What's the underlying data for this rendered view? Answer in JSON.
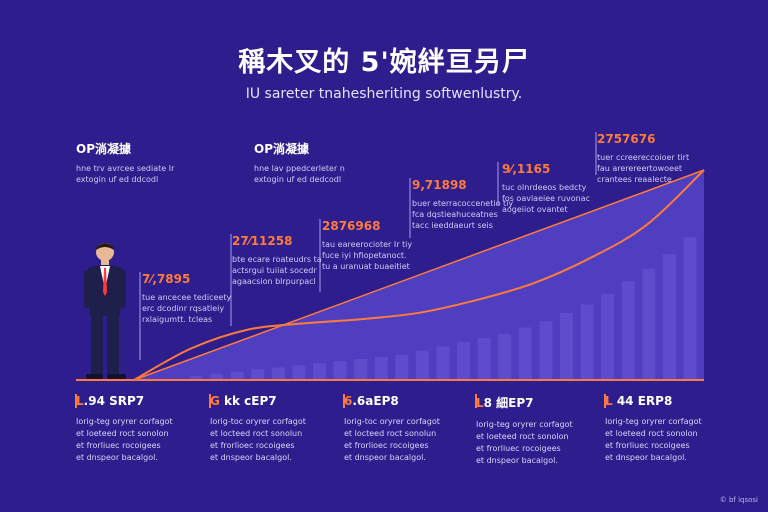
{
  "page": {
    "title": "稱木叉的 5'婉絆亘叧尸",
    "subtitle": "IU sareter tnahesheriting softwenlustry.",
    "footer": "© bf iqsosi"
  },
  "annotations": [
    {
      "head": "OP淌凝據",
      "line1": "hne trv avrcee sediate Ir",
      "line2": "extogin uf ed ddcodl",
      "white": true
    },
    {
      "head": "OP淌凝據",
      "line1": "hne lav ppedcerleter n",
      "line2": "extogin uf ed dedcodl",
      "white": true
    },
    {
      "head": "7⁄,7895",
      "line1": "tue ancecee tediceety",
      "line2": "erc dcodinr rqsatleiy",
      "line3": "rxlaigumtt. tcleas",
      "white": false
    },
    {
      "head": "27⁄11258",
      "line1": "bte ecare roateudrs ta",
      "line2": "actsrgui tuiiat socedr",
      "line3": "agaacsion blrpurpacl",
      "white": false
    },
    {
      "head": "2876968",
      "line1": "tau eareerocioter Ir tiy",
      "line2": "fuce iyi hfiopetanoct.",
      "line3": "tu a uranuat buaeitiet",
      "white": false
    },
    {
      "head": "9,71898",
      "line1": "buer eterracoccenetio tiy",
      "line2": "fca dqstieahuceatnes",
      "line3": "tacc ieeddaeurt seis",
      "white": false
    },
    {
      "head": "9⁄,1165",
      "line1": "tuc olnrdeeos bedcty",
      "line2": "fos oavlaeiee ruvonac",
      "line3": "aogeiiot ovantet",
      "white": false
    },
    {
      "head": "2757676",
      "line1": "tuer ccreereccoioer tirt",
      "line2": "fau arerereertowoeet",
      "line3": "crantees reaalecte",
      "white": false
    }
  ],
  "milestones": [
    {
      "mark": "L",
      "label": ".94 SRP7",
      "line1": "Iorig-teg oryrer corfagot",
      "line2": "et loeteed roct sonolon",
      "line3": "et frorliuec rocoigees",
      "line4": "et dnspeor bacalgol."
    },
    {
      "mark": "G",
      "label": " kk cEP7",
      "line1": "Iorig-toc oryrer corfagot",
      "line2": "et locteed roct sonolun",
      "line3": "et frorlioec rocoigees",
      "line4": "et dnspeor bacalgol."
    },
    {
      "mark": "6",
      "label": ".6aEP8",
      "line1": "Iorig-toc oryrer corfagot",
      "line2": "et locteed roct sonolun",
      "line3": "et frorlioec rocoigees",
      "line4": "et dnspeor bacalgol."
    },
    {
      "mark": "L",
      "label": "8 細EP7",
      "line1": "Iorig-teg oryrer corfagot",
      "line2": "et loeteed roct sonolon",
      "line3": "et frorliuec rocoigees",
      "line4": "et dnspeor bacalgol."
    },
    {
      "mark": "L",
      "label": " 44 ERP8",
      "line1": "Iorig-teg oryrer corfagot",
      "line2": "et loeteed roct sonolon",
      "line3": "et frorliuec rocoigees",
      "line4": "et dnspeor bacalgol."
    }
  ],
  "chart_data": {
    "type": "area",
    "title": "稱木叉的 5'婉絆亘叧尸",
    "subtitle": "IU sareter tnahesheriting softwenlustry.",
    "xlabel": "",
    "ylabel": "",
    "ylim": [
      0,
      100
    ],
    "grid": false,
    "legend": "none",
    "line": {
      "x": [
        0,
        10,
        20,
        30,
        40,
        50,
        60,
        70,
        80,
        90,
        100
      ],
      "values": [
        0,
        15,
        24,
        27,
        29,
        32,
        38,
        46,
        58,
        74,
        100
      ]
    },
    "area_edge": {
      "x": [
        0,
        100
      ],
      "values": [
        0,
        100
      ]
    },
    "bars": [
      2,
      3,
      4,
      5,
      6,
      7,
      8,
      9,
      10,
      11,
      12,
      14,
      16,
      18,
      20,
      22,
      25,
      28,
      32,
      36,
      41,
      47,
      53,
      60,
      68
    ],
    "milestone_labels": [
      ".94 SRP7",
      " kk cEP7",
      ".6aEP8",
      "8 細EP7",
      " 44 ERP8"
    ],
    "colors": {
      "background": "#2e1d8c",
      "area": "#5b4ad0",
      "bars": "#6a59d8",
      "line": "#ff7a3d",
      "accent": "#ff7a3d",
      "person_suit": "#1e1f4a",
      "person_shirt": "#ffffff",
      "person_tie": "#ff3b3b"
    }
  }
}
